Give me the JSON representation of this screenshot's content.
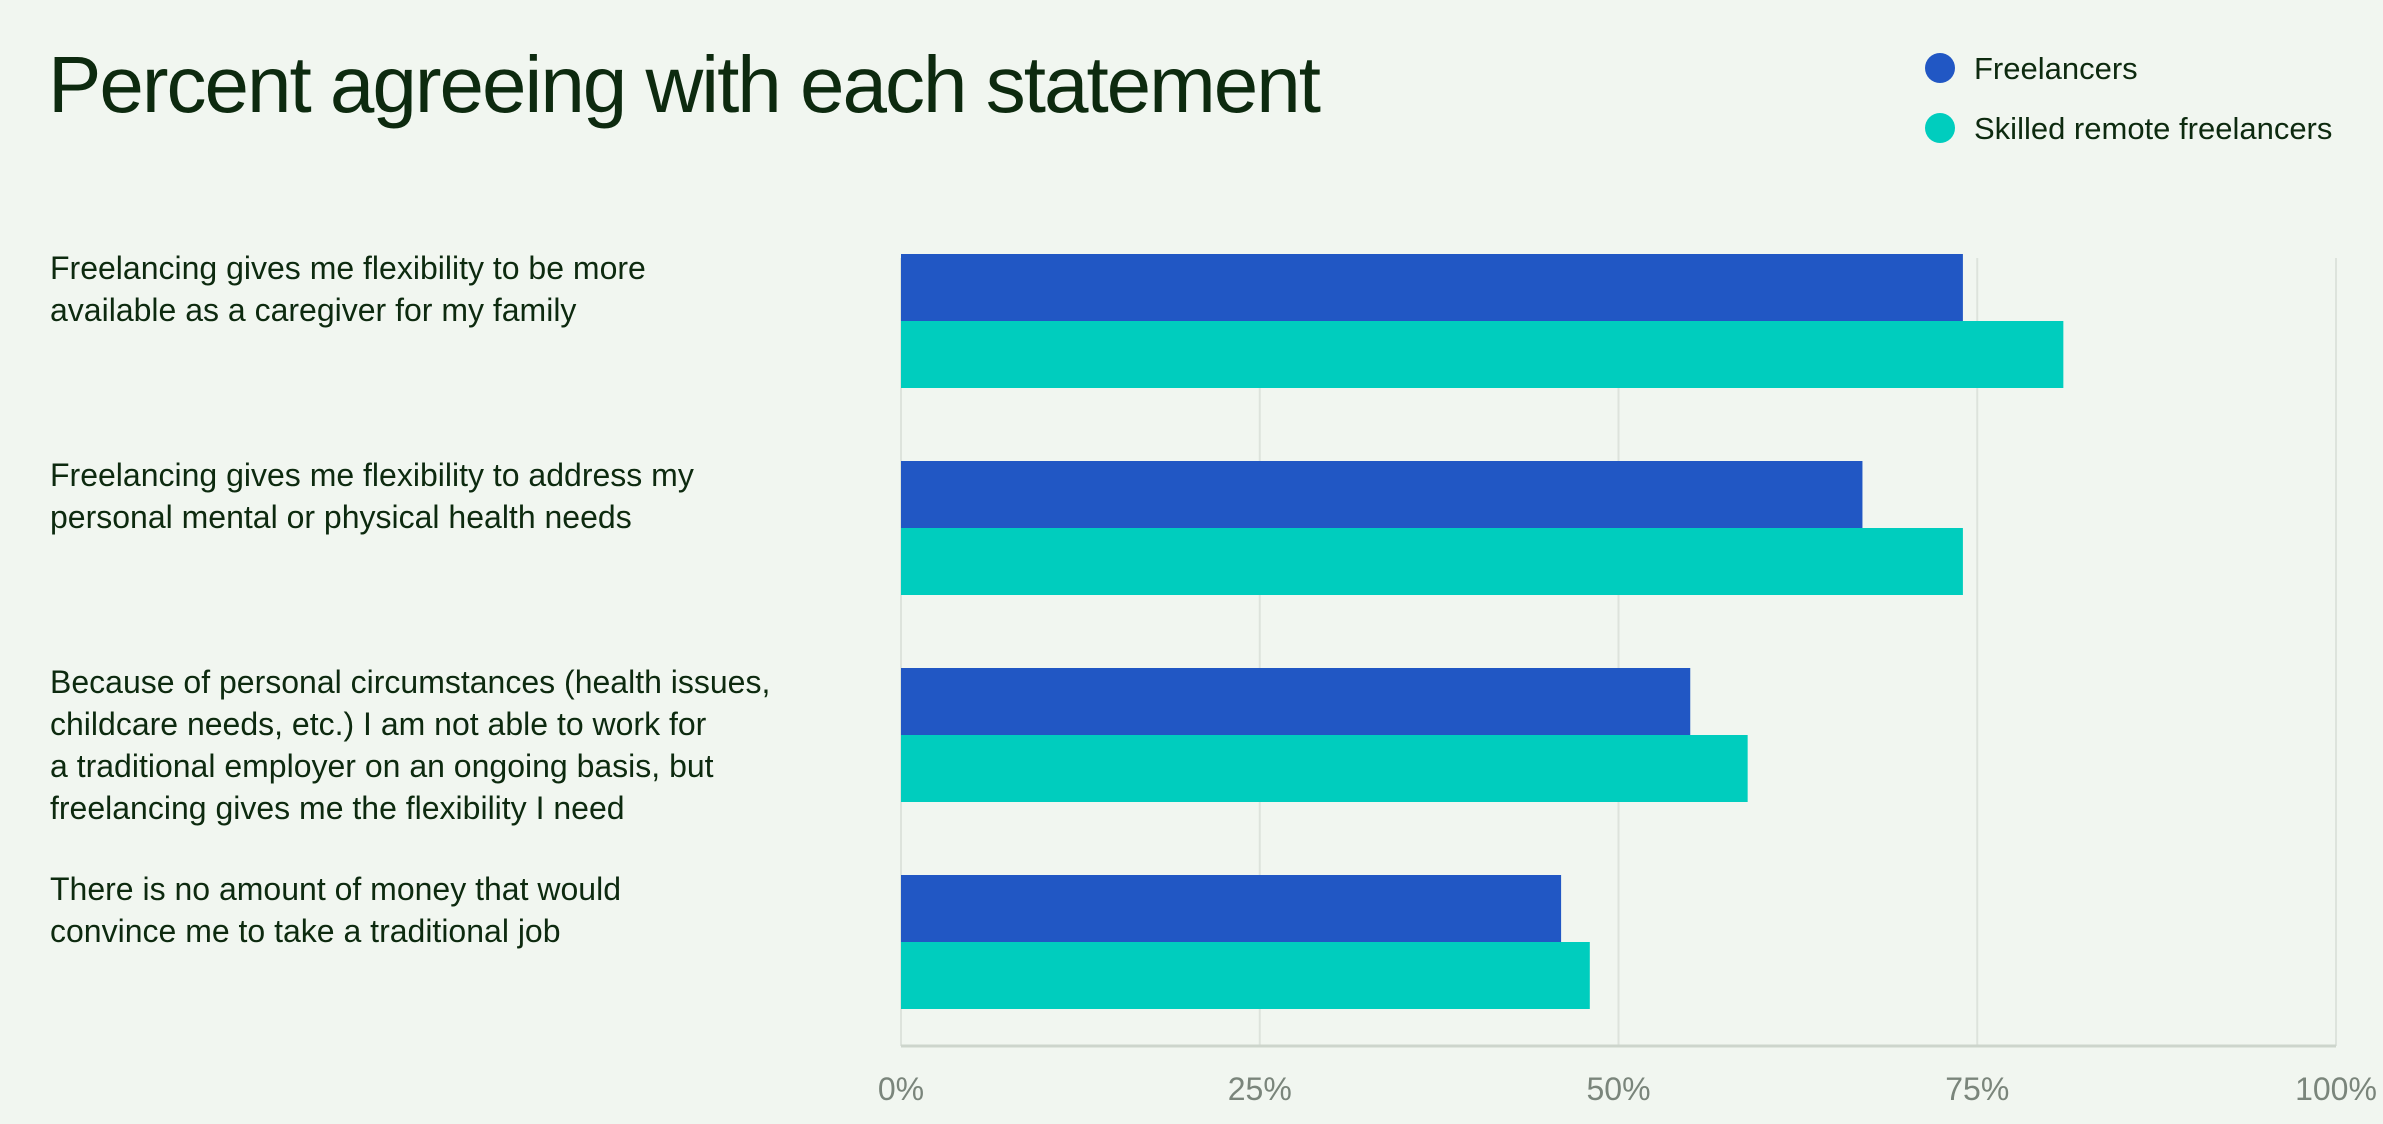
{
  "chart_data": {
    "type": "bar",
    "orientation": "horizontal",
    "title": "Percent agreeing with each statement",
    "categories": [
      [
        "Freelancing gives me flexibility to be more",
        "available as a caregiver for my family"
      ],
      [
        "Freelancing gives me flexibility to address my",
        "personal mental or physical health needs"
      ],
      [
        "Because of personal circumstances (health issues,",
        "childcare needs, etc.) I am not able to work for",
        "a traditional employer on an ongoing basis, but",
        "freelancing gives me the flexibility I need"
      ],
      [
        "There is no amount of money that would",
        "convince me to take a traditional job"
      ]
    ],
    "series": [
      {
        "name": "Freelancers",
        "color": "#2157c4",
        "values": [
          74,
          67,
          55,
          46
        ]
      },
      {
        "name": "Skilled remote freelancers",
        "color": "#00cdbe",
        "values": [
          81,
          74,
          59,
          48
        ]
      }
    ],
    "xlim": [
      0,
      100
    ],
    "xticks": [
      0,
      25,
      50,
      75,
      100
    ],
    "xtick_labels": [
      "0%",
      "25%",
      "50%",
      "75%",
      "100%"
    ],
    "grid": true,
    "legend_position": "top-right"
  }
}
